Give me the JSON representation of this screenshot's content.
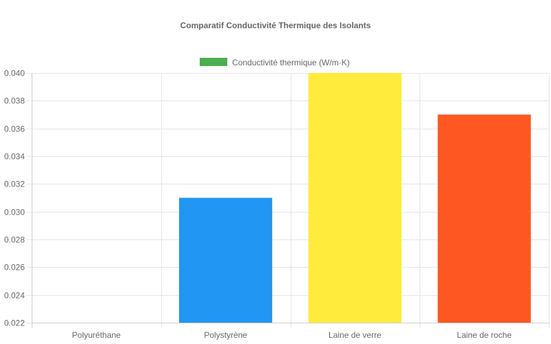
{
  "chart_data": {
    "type": "bar",
    "title": "Comparatif Conductivité Thermique des Isolants",
    "categories": [
      "Polyuréthane",
      "Polystyrène",
      "Laine de verre",
      "Laine de roche"
    ],
    "series": [
      {
        "name": "Conductivité thermique (W/m·K)",
        "values": [
          0.022,
          0.031,
          0.04,
          0.037
        ],
        "colors": [
          "#4CAF50",
          "#2196F3",
          "#FFEB3B",
          "#FF5722"
        ]
      }
    ],
    "legend_color": "#4CAF50",
    "yticks": [
      "0.022",
      "0.024",
      "0.026",
      "0.028",
      "0.030",
      "0.032",
      "0.034",
      "0.036",
      "0.038",
      "0.040"
    ],
    "ylim": [
      0.022,
      0.04
    ],
    "grid": true,
    "legend_position": "top"
  }
}
